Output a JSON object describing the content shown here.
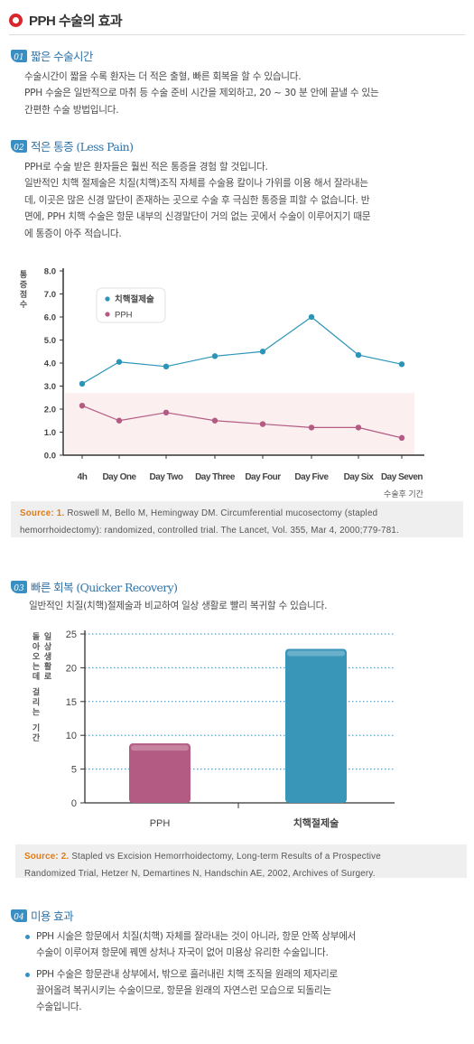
{
  "page": {
    "title": "PPH 수술의 효과"
  },
  "sections": {
    "s1": {
      "num": "01",
      "title": "짧은 수술시간",
      "lines": [
        "수술시간이 짧을 수록 환자는 더 적은 출혈, 빠른 회복을 할 수 있습니다.",
        "PPH 수술은 일반적으로 마취 등 수술 준비 시간을 제외하고, 20 ~ 30 분 안에 끝낼 수 있는",
        "간편한 수술 방법입니다."
      ]
    },
    "s2": {
      "num": "02",
      "title": "적은 통증 (Less Pain)",
      "lines": [
        "PPH로 수술 받은 환자들은 훨씬 적은 통증을 경험 할 것입니다.",
        "일반적인 치핵 절제술은 치질(치핵)조직 자체를 수술용 칼이나 가위를 이용 해서 잘라내는",
        "데, 이곳은 많은 신경 말단이 존재하는 곳으로 수술 후 극심한 통증을 피할 수 없습니다. 반",
        "면에, PPH 치핵 수술은 항문 내부의 신경말단이 거의 없는 곳에서 수술이 이루어지기 때문",
        "에 통증이 아주 적습니다."
      ]
    },
    "s3": {
      "num": "03",
      "title": "빠른 회복 (Quicker Recovery)",
      "lines": [
        "일반적인 치질(치핵)절제술과 비교하여 일상 생활로 빨리 복귀할 수 있습니다."
      ]
    },
    "s4": {
      "num": "04",
      "title": "미용 효과",
      "bullets": [
        [
          "PPH 시술은 항문에서 치질(치핵) 자체를 잘라내는 것이 아니라, 항문 안쪽 상부에서",
          "수술이 이루어져  항문에 꿰멘 상처나  자국이 없어 미용상 유리한 수술입니다."
        ],
        [
          "PPH 수술은 항문관내 상부에서, 밖으로 흘러내린 치핵 조직을 원래의 제자리로",
          "끌어올려 복귀시키는 수술이므로, 항문을 원래의 자연스런 모습으로 되돌리는",
          "수술입니다."
        ]
      ]
    }
  },
  "sources": {
    "src1": {
      "label": "Source: 1.",
      "line1": "Roswell M, Bello M, Hemingway DM. Circumferential mucosectomy (stapled",
      "line2": "hemorrhoidectomy): randomized, controlled trial. The Lancet, Vol. 355, Mar 4, 2000;779-781."
    },
    "src2": {
      "label": "Source: 2.",
      "line1": "Stapled vs Excision Hemorrhoidectomy, Long-term Results of a Prospective",
      "line2": "Randomized Trial, Hetzer N, Demartines N, Handschin AE, 2002, Archives of Surgery."
    }
  },
  "colors": {
    "accent_red": "#d9262a",
    "heading_blue": "#2f73a8",
    "series_blue": "#2b95b8",
    "series_pink": "#b35b82",
    "source_orange": "#e07a16"
  },
  "chart_data": [
    {
      "type": "line",
      "title": "",
      "ylabel": "통증점수",
      "xlabel": "수술후 기간",
      "categories": [
        "4h",
        "Day One",
        "Day Two",
        "Day Three",
        "Day Four",
        "Day Five",
        "Day Six",
        "Day Seven"
      ],
      "yticks": [
        "8.0",
        "7.0",
        "6.0",
        "5.0",
        "4.0",
        "3.0",
        "2.0",
        "1.0",
        "0.0"
      ],
      "ylim": [
        0,
        8
      ],
      "legend_position": "top-left",
      "series": [
        {
          "name": "치핵절제술",
          "color": "#2b95b8",
          "values": [
            3.1,
            4.05,
            3.85,
            4.3,
            4.5,
            6.0,
            4.35,
            3.95
          ]
        },
        {
          "name": "PPH",
          "color": "#b35b82",
          "values": [
            2.15,
            1.5,
            1.85,
            1.5,
            1.35,
            1.2,
            1.2,
            0.75
          ]
        }
      ]
    },
    {
      "type": "bar",
      "title": "",
      "ylabel": "일상생활로 돌아오는데 걸리는 기간",
      "categories": [
        "PPH",
        "치핵절제술"
      ],
      "yticks": [
        "25",
        "20",
        "15",
        "10",
        "5",
        "0"
      ],
      "ylim": [
        0,
        25
      ],
      "values": [
        8.8,
        22.8
      ],
      "colors": [
        "#b35b82",
        "#3a96b8"
      ]
    }
  ]
}
